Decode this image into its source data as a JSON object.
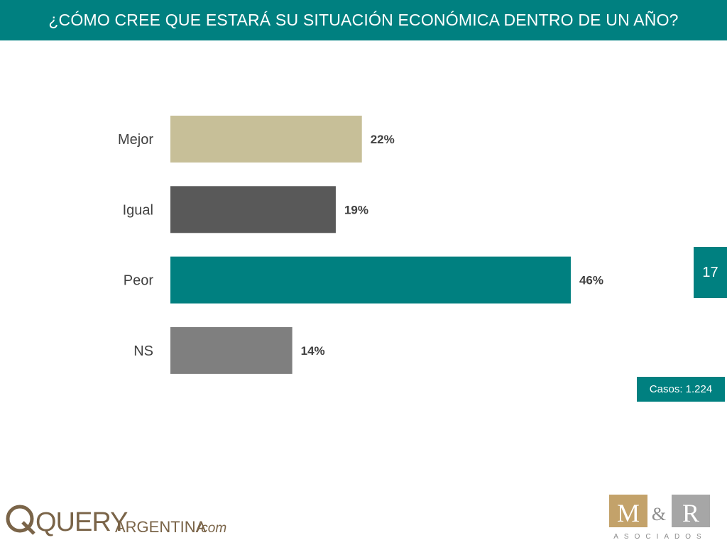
{
  "header": {
    "title": "¿CÓMO CREE QUE ESTARÁ SU SITUACIÓN ECONÓMICA DENTRO DE UN AÑO?"
  },
  "page_number": "17",
  "cases": "Casos: 1.224",
  "colors": {
    "accent": "#008080",
    "mejor": "#C7BF98",
    "igual": "#595959",
    "peor": "#008080",
    "ns": "#7F7F7F"
  },
  "logos": {
    "query": {
      "wordmark": "QUERY",
      "argentina": "ARGENTINA",
      "suffix": "/com"
    },
    "mr": {
      "m": "M",
      "amp": "&",
      "r": "R",
      "subtitle": "ASOCIADOS"
    }
  },
  "chart_data": {
    "type": "bar",
    "orientation": "horizontal",
    "categories": [
      "Mejor",
      "Igual",
      "Peor",
      "NS"
    ],
    "values": [
      22,
      19,
      46,
      14
    ],
    "value_labels": [
      "22%",
      "19%",
      "46%",
      "14%"
    ],
    "bar_colors": [
      "#C7BF98",
      "#595959",
      "#008080",
      "#7F7F7F"
    ],
    "unit": "%",
    "xlim": [
      0,
      50
    ],
    "grid": false,
    "legend": "none"
  }
}
